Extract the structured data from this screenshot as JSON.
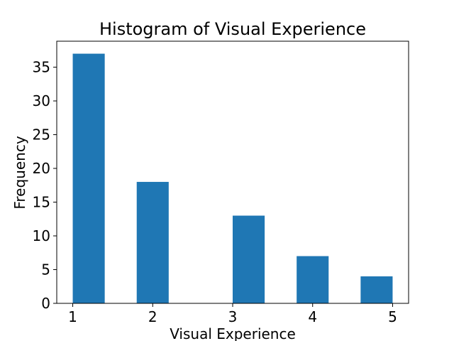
{
  "chart_data": {
    "type": "bar",
    "title": "Histogram of Visual Experience",
    "xlabel": "Visual Experience",
    "ylabel": "Frequency",
    "bins": [
      {
        "start": 1.0,
        "end": 1.4,
        "value": 37
      },
      {
        "start": 1.4,
        "end": 1.8,
        "value": 0
      },
      {
        "start": 1.8,
        "end": 2.2,
        "value": 18
      },
      {
        "start": 2.2,
        "end": 2.6,
        "value": 0
      },
      {
        "start": 2.6,
        "end": 3.0,
        "value": 0
      },
      {
        "start": 3.0,
        "end": 3.4,
        "value": 13
      },
      {
        "start": 3.4,
        "end": 3.8,
        "value": 0
      },
      {
        "start": 3.8,
        "end": 4.2,
        "value": 7
      },
      {
        "start": 4.2,
        "end": 4.6,
        "value": 0
      },
      {
        "start": 4.6,
        "end": 5.0,
        "value": 4
      }
    ],
    "xticks": [
      "1",
      "2",
      "3",
      "4",
      "5"
    ],
    "yticks": [
      "0",
      "5",
      "10",
      "15",
      "20",
      "25",
      "30",
      "35"
    ],
    "xlim": [
      0.8,
      5.2
    ],
    "ylim": [
      0,
      38.85
    ],
    "grid": false,
    "bar_color": "#1f77b4"
  }
}
